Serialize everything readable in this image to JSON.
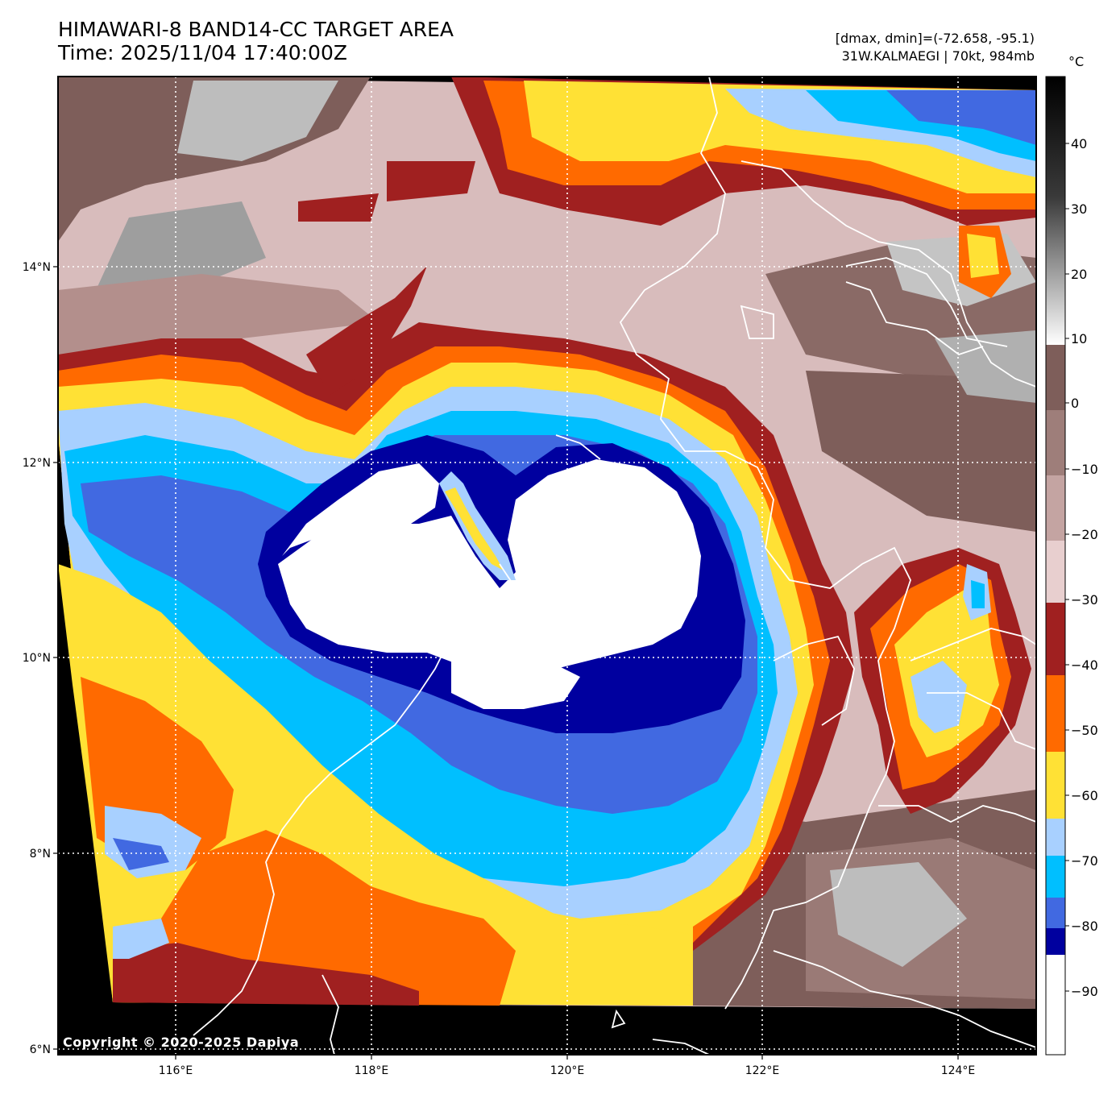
{
  "title": {
    "line1": "HIMAWARI-8 BAND14-CC TARGET AREA",
    "line2": "Time: 2025/11/04 17:40:00Z"
  },
  "info": {
    "range": "[dmax, dmin]=(-72.658, -95.1)",
    "storm": "31W.KALMAEGI | 70kt, 984mb"
  },
  "axes": {
    "lat_labels": [
      "14°N",
      "12°N",
      "10°N",
      "8°N",
      "6°N"
    ],
    "lon_labels": [
      "116°E",
      "118°E",
      "120°E",
      "122°E",
      "124°E"
    ]
  },
  "colorbar": {
    "unit": "°C",
    "tick_labels": [
      "40",
      "30",
      "20",
      "10",
      "0",
      "−10",
      "−20",
      "−30",
      "−40",
      "−50",
      "−60",
      "−70",
      "−80",
      "−90"
    ],
    "colors": {
      "above_10": "gray-to-black gradient",
      "0_to_10": "#7e5e5a",
      "minus30_to_0": "#e8cfcf",
      "minus40": "#a02020",
      "minus50": "#ff6a00",
      "minus60": "#ffe135",
      "minus70": "#a8d0ff",
      "minus75": "#00bfff",
      "minus80": "#4169e1",
      "minus85": "#00009f",
      "below_minus85": "#ffffff"
    }
  },
  "copyright": "Copyright © 2020-2025 Dapiya"
}
